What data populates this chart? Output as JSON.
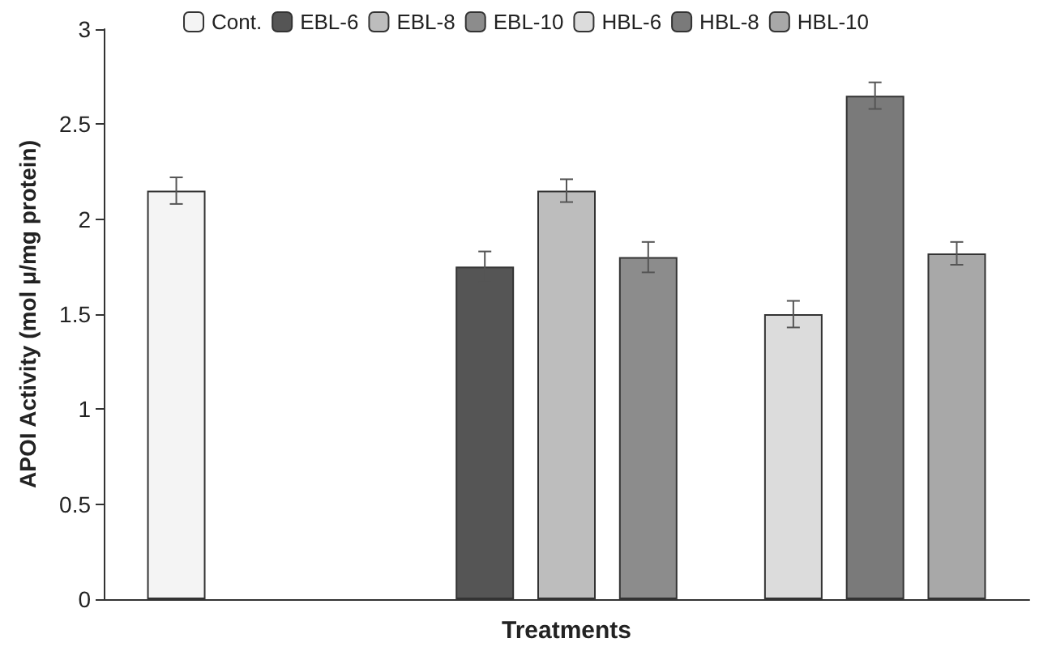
{
  "chart_data": {
    "type": "bar",
    "xlabel": "Treatments",
    "ylabel": "APOI Activity (mol μ/mg protein)",
    "categories": [
      null,
      null,
      null
    ],
    "series": [
      {
        "name": "Cont.",
        "color": "#f4f4f4",
        "values": [
          2.15,
          null,
          null
        ],
        "errors": [
          0.07,
          null,
          null
        ]
      },
      {
        "name": "EBL-6",
        "color": "#555555",
        "values": [
          null,
          1.75,
          null
        ],
        "errors": [
          null,
          0.08,
          null
        ]
      },
      {
        "name": "EBL-8",
        "color": "#bdbdbd",
        "values": [
          null,
          2.15,
          null
        ],
        "errors": [
          null,
          0.06,
          null
        ]
      },
      {
        "name": "EBL-10",
        "color": "#8c8c8c",
        "values": [
          null,
          1.8,
          null
        ],
        "errors": [
          null,
          0.08,
          null
        ]
      },
      {
        "name": "HBL-6",
        "color": "#dcdcdc",
        "values": [
          null,
          null,
          1.5
        ],
        "errors": [
          null,
          null,
          0.07
        ]
      },
      {
        "name": "HBL-8",
        "color": "#7a7a7a",
        "values": [
          null,
          null,
          2.65
        ],
        "errors": [
          null,
          null,
          0.07
        ]
      },
      {
        "name": "HBL-10",
        "color": "#a8a8a8",
        "values": [
          null,
          null,
          1.82
        ],
        "errors": [
          null,
          null,
          0.06
        ]
      }
    ],
    "ylim": [
      0,
      3
    ],
    "yticks": [
      0,
      0.5,
      1,
      1.5,
      2,
      2.5,
      3
    ],
    "grid": false,
    "legend": "top"
  }
}
